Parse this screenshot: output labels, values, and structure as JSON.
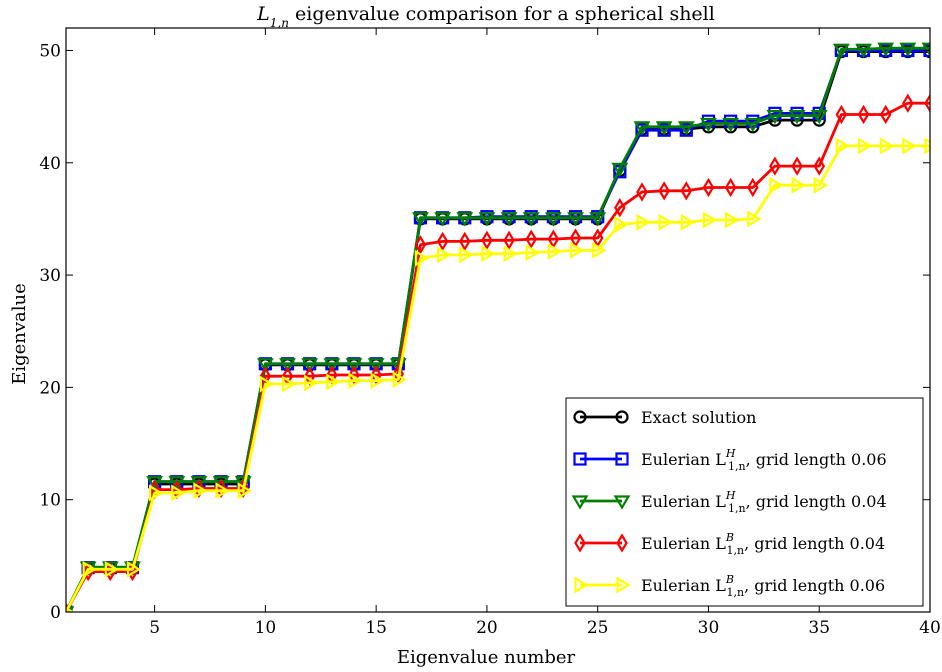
{
  "chart_data": {
    "type": "line",
    "title": {
      "main": "L",
      "sub": "1,n",
      "rest": " eigenvalue comparison for a spherical shell"
    },
    "xlabel": "Eigenvalue number",
    "ylabel": "Eigenvalue",
    "xlim": [
      1,
      40
    ],
    "ylim": [
      0,
      52
    ],
    "xticks": [
      5,
      10,
      15,
      20,
      25,
      30,
      35,
      40
    ],
    "yticks": [
      0,
      10,
      20,
      30,
      40,
      50
    ],
    "grid": false,
    "legend_position": "bottom-right",
    "x": [
      1,
      2,
      3,
      4,
      5,
      6,
      7,
      8,
      9,
      10,
      11,
      12,
      13,
      14,
      15,
      16,
      17,
      18,
      19,
      20,
      21,
      22,
      23,
      24,
      25,
      26,
      27,
      28,
      29,
      30,
      31,
      32,
      33,
      34,
      35,
      36,
      37,
      38,
      39,
      40
    ],
    "series": [
      {
        "legend": {
          "pre": "Exact solution",
          "sup": "",
          "sub": "",
          "post": ""
        },
        "color": "#000000",
        "marker": "circle",
        "values": [
          0,
          3.9,
          3.9,
          3.9,
          11.4,
          11.4,
          11.4,
          11.4,
          11.4,
          22.0,
          22.0,
          22.0,
          22.0,
          22.0,
          22.0,
          22.0,
          35.0,
          35.0,
          35.0,
          35.0,
          35.0,
          35.0,
          35.0,
          35.0,
          35.0,
          39.3,
          43.0,
          43.0,
          43.0,
          43.2,
          43.2,
          43.2,
          43.8,
          43.8,
          43.8,
          49.9,
          49.9,
          49.9,
          49.9,
          49.9
        ]
      },
      {
        "legend": {
          "pre": "Eulerian L",
          "sup": "H",
          "sub": "1,n",
          "post": ", grid length 0.06"
        },
        "color": "#0000ff",
        "marker": "square",
        "values": [
          0,
          3.95,
          3.95,
          3.95,
          11.6,
          11.6,
          11.6,
          11.6,
          11.6,
          22.1,
          22.1,
          22.1,
          22.1,
          22.1,
          22.1,
          22.1,
          35.1,
          35.1,
          35.1,
          35.2,
          35.2,
          35.2,
          35.2,
          35.2,
          35.2,
          39.2,
          42.9,
          42.9,
          42.9,
          43.7,
          43.7,
          43.7,
          44.4,
          44.4,
          44.4,
          50.0,
          50.0,
          50.0,
          50.0,
          50.0
        ]
      },
      {
        "legend": {
          "pre": "Eulerian L",
          "sup": "H",
          "sub": "1,n",
          "post": ", grid length 0.04"
        },
        "color": "#008000",
        "marker": "triangle-down",
        "values": [
          0,
          4.0,
          4.0,
          4.0,
          11.6,
          11.6,
          11.6,
          11.6,
          11.6,
          22.1,
          22.1,
          22.1,
          22.1,
          22.1,
          22.1,
          22.1,
          35.1,
          35.1,
          35.1,
          35.1,
          35.1,
          35.1,
          35.1,
          35.1,
          35.1,
          39.5,
          43.2,
          43.2,
          43.2,
          43.5,
          43.5,
          43.5,
          44.2,
          44.2,
          44.2,
          50.1,
          50.1,
          50.2,
          50.2,
          50.2
        ]
      },
      {
        "legend": {
          "pre": "Eulerian L",
          "sup": "B",
          "sub": "1,n",
          "post": ", grid length 0.04"
        },
        "color": "#ff0000",
        "marker": "diamond",
        "values": [
          0,
          3.6,
          3.6,
          3.6,
          10.9,
          10.9,
          11.0,
          11.0,
          11.0,
          21.0,
          21.0,
          21.0,
          21.1,
          21.1,
          21.1,
          21.2,
          32.7,
          33.0,
          33.0,
          33.1,
          33.1,
          33.2,
          33.2,
          33.3,
          33.3,
          36.0,
          37.4,
          37.5,
          37.5,
          37.8,
          37.8,
          37.8,
          39.7,
          39.7,
          39.7,
          44.3,
          44.3,
          44.3,
          45.3,
          45.3
        ]
      },
      {
        "legend": {
          "pre": "Eulerian L",
          "sup": "B",
          "sub": "1,n",
          "post": ", grid length 0.06"
        },
        "color": "#ffff00",
        "marker": "triangle-right",
        "values": [
          0,
          3.8,
          3.8,
          3.8,
          10.6,
          10.6,
          10.8,
          10.8,
          10.8,
          20.3,
          20.3,
          20.4,
          20.5,
          20.6,
          20.6,
          20.7,
          31.5,
          31.8,
          31.8,
          31.9,
          31.9,
          32.0,
          32.1,
          32.2,
          32.2,
          34.5,
          34.7,
          34.7,
          34.7,
          34.9,
          34.9,
          35.0,
          38.0,
          38.0,
          38.0,
          41.5,
          41.5,
          41.5,
          41.5,
          41.5
        ]
      }
    ]
  }
}
